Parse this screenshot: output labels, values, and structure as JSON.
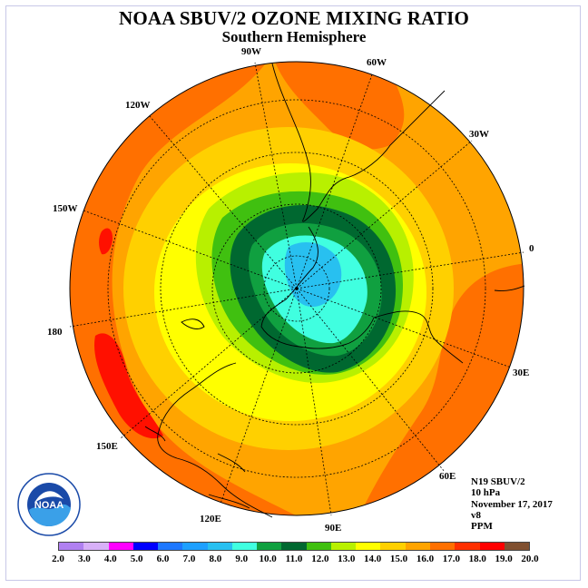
{
  "title": "NOAA SBUV/2 OZONE MIXING RATIO",
  "subtitle": "Southern Hemisphere",
  "longitude_labels": [
    "90W",
    "60W",
    "30W",
    "0",
    "30E",
    "60E",
    "90E",
    "120E",
    "150E",
    "180",
    "150W",
    "120W"
  ],
  "info": {
    "satellite": "N19 SBUV/2",
    "level": "10 hPa",
    "date": "November 17, 2017",
    "version": "v8",
    "units": "PPM"
  },
  "logo_text": "NOAA",
  "scale": {
    "ticks": [
      "2.0",
      "3.0",
      "4.0",
      "5.0",
      "6.0",
      "7.0",
      "8.0",
      "9.0",
      "10.0",
      "11.0",
      "12.0",
      "13.0",
      "14.0",
      "15.0",
      "16.0",
      "17.0",
      "18.0",
      "19.0",
      "20.0"
    ],
    "colors": [
      "#b080f0",
      "#d8b0f8",
      "#ff00ff",
      "#0000ff",
      "#1e78ff",
      "#1ea0ff",
      "#28c0f0",
      "#40ffe0",
      "#10a040",
      "#006830",
      "#40c010",
      "#b8f000",
      "#ffff00",
      "#ffd000",
      "#ffa400",
      "#ff7000",
      "#ff3000",
      "#ff0000",
      "#805030"
    ]
  },
  "map_colors": {
    "ocean_orange": "#ffa400",
    "dark_orange": "#ff7000",
    "red": "#ff1000",
    "yellow": "#ffff00",
    "light_yellow": "#ffd000",
    "yellow_green": "#b8f000",
    "green": "#40c010",
    "dark_green": "#006830",
    "mid_green": "#10a040",
    "cyan": "#40ffe0",
    "light_blue": "#28c0f0"
  }
}
